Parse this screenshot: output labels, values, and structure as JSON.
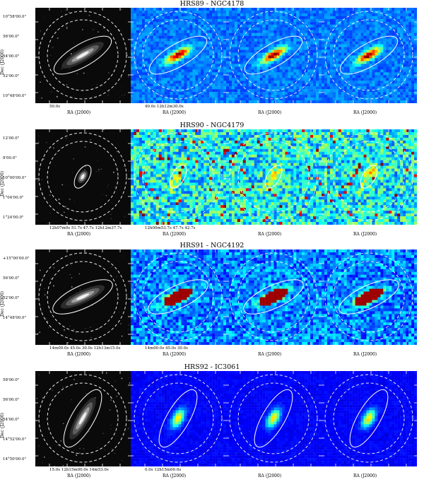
{
  "rows": [
    {
      "title": "HRS89 - NGC4178",
      "y_ticks": [
        "10°58'00.0\"",
        "56'00.0\"",
        "54'00.0\"",
        "52'00.0\"",
        "10°48'00.0\""
      ],
      "x_ticks": [
        "50.0s",
        "40.0s 12h12m30.0s",
        "",
        "",
        ""
      ],
      "ra_label": "RA (J2000)",
      "dec_label": "Dec (J2000)",
      "theme": "smooth",
      "ellipse_angle": -30
    },
    {
      "title": "HRS90 - NGC4179",
      "y_ticks": [
        "12'00.0\"",
        "8'00.0\"",
        "10°00'00.0\"",
        "1°04'00.0\"",
        "1°24'00.0\""
      ],
      "x_ticks": [
        "12h07m0s 51.7s 47.7s 12h12m37.7s",
        "12h00m53.7s 47.7s 42.7s",
        "",
        "",
        ""
      ],
      "ra_label": "RA (J2000)",
      "dec_label": "Dec (J2000)",
      "theme": "noisy",
      "ellipse_angle": -60
    },
    {
      "title": "HRS91 - NGC4192",
      "y_ticks": [
        "+15°00'00.0\"",
        "56'00.0\"",
        "52'00.0\"",
        "14°48'00.0\""
      ],
      "x_ticks": [
        "14m00.0s 45.0s 30.0s 12h13m15.0s",
        "14m00.0s 45.0s 30.0s",
        "",
        "",
        ""
      ],
      "ra_label": "RA (J2000)",
      "dec_label": "Dec (J2000)",
      "theme": "medium",
      "ellipse_angle": -25
    },
    {
      "title": "HRS92 - IC3061",
      "y_ticks": [
        "58'00.0\"",
        "56'00.0\"",
        "54'00.0\"",
        "14°52'00.0\"",
        "14°50'00.0\""
      ],
      "x_ticks": [
        "15.0s 12h15m00.0s 14m53.0s",
        "0.0s 12h15m00.0s",
        "",
        "",
        ""
      ],
      "ra_label": "RA (J2000)",
      "dec_label": "Dec (J2000)",
      "theme": "blue",
      "ellipse_angle": -60
    }
  ],
  "colors": {
    "gray_bg": "#0a0a0a",
    "jet_low": "#1a3cff",
    "jet_high": "#8b0000",
    "overlay": "#ffffff"
  }
}
